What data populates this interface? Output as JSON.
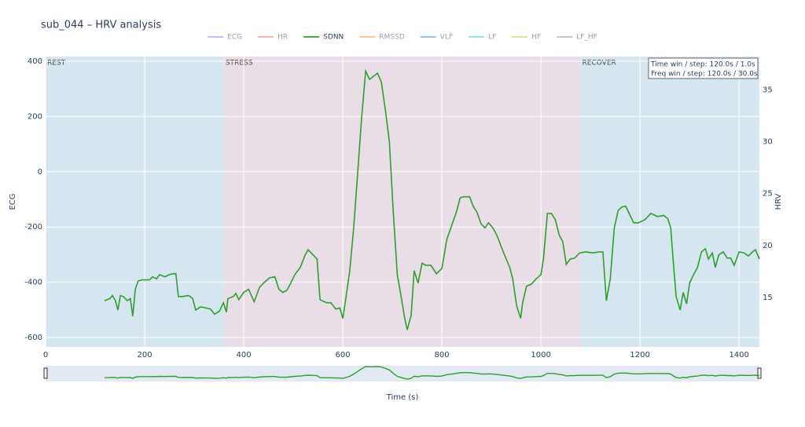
{
  "chart_data": {
    "type": "line",
    "title": "sub_044 – HRV analysis",
    "xlabel": "Time (s)",
    "ylabel": "ECG",
    "y2label": "HRV",
    "xlim": [
      0,
      1441
    ],
    "xticks": [
      0,
      200,
      400,
      600,
      800,
      1000,
      1200,
      1400
    ],
    "ylim": [
      -634,
      417
    ],
    "yticks": [
      -600,
      -400,
      -200,
      0,
      200,
      400
    ],
    "y2lim": [
      10.25,
      38.2
    ],
    "y2ticks": [
      15,
      20,
      25,
      30,
      35
    ],
    "grid": true,
    "legend": "top",
    "range_slider": true,
    "regions": [
      {
        "label": "REST",
        "start": 0,
        "end": 360,
        "color": "#d6e6f1"
      },
      {
        "label": "STRESS",
        "start": 360,
        "end": 1080,
        "color": "#e9dde8"
      },
      {
        "label": "RECOVER",
        "start": 1080,
        "end": 1441,
        "color": "#d6e6f1"
      }
    ],
    "annotations": [
      "Time win / step: 120.0s / 1.0s",
      "Freq win / step: 120.0s / 30.0s"
    ],
    "x": [
      119,
      130,
      135,
      141,
      146,
      151,
      157,
      165,
      171,
      176,
      181,
      187,
      195,
      210,
      216,
      224,
      230,
      241,
      249,
      257,
      263,
      268,
      276,
      289,
      297,
      303,
      313,
      324,
      333,
      341,
      351,
      359,
      365,
      368,
      379,
      384,
      390,
      400,
      410,
      421,
      432,
      440,
      452,
      463,
      471,
      479,
      487,
      495,
      503,
      514,
      524,
      530,
      540,
      548,
      554,
      567,
      576,
      586,
      594,
      600,
      606,
      614,
      622,
      630,
      638,
      646,
      654,
      662,
      670,
      678,
      686,
      694,
      702,
      710,
      717,
      725,
      730,
      738,
      744,
      752,
      760,
      768,
      778,
      789,
      800,
      810,
      821,
      829,
      837,
      844,
      856,
      863,
      871,
      879,
      887,
      894,
      903,
      911,
      924,
      937,
      943,
      951,
      959,
      963,
      971,
      981,
      990,
      1000,
      1005,
      1013,
      1021,
      1029,
      1037,
      1044,
      1051,
      1059,
      1068,
      1078,
      1090,
      1106,
      1117,
      1125,
      1132,
      1140,
      1148,
      1156,
      1163,
      1171,
      1178,
      1187,
      1197,
      1210,
      1222,
      1235,
      1248,
      1256,
      1262,
      1268,
      1273,
      1281,
      1287,
      1294,
      1300,
      1308,
      1316,
      1324,
      1332,
      1338,
      1346,
      1352,
      1359,
      1368,
      1376,
      1383,
      1390,
      1400,
      1410,
      1419,
      1427,
      1433,
      1441
    ],
    "series": [
      {
        "name": "ECG",
        "color": "#636efa",
        "visible": false
      },
      {
        "name": "HR",
        "color": "#ef553b",
        "visible": false
      },
      {
        "name": "SDNN",
        "color": "#2ca02c",
        "axis": "y2",
        "visible": true,
        "values": [
          14.7,
          14.9,
          15.2,
          14.7,
          13.8,
          15.2,
          15.1,
          14.7,
          14.9,
          13.2,
          15.8,
          16.6,
          16.7,
          16.7,
          17.0,
          16.8,
          17.2,
          17.0,
          17.2,
          17.3,
          17.3,
          15.1,
          15.1,
          15.2,
          14.9,
          13.8,
          14.1,
          14.0,
          13.9,
          13.4,
          13.7,
          14.5,
          13.6,
          14.9,
          15.1,
          15.4,
          14.8,
          15.5,
          15.8,
          14.6,
          16.0,
          16.4,
          16.9,
          17.0,
          15.8,
          15.5,
          15.7,
          16.4,
          17.2,
          17.9,
          19.1,
          19.6,
          19.1,
          18.7,
          14.8,
          14.5,
          14.5,
          13.9,
          14.0,
          13.0,
          14.9,
          17.6,
          21.7,
          27.0,
          32.3,
          36.8,
          36.0,
          36.3,
          36.6,
          35.7,
          33.0,
          30.0,
          23.2,
          17.2,
          15.3,
          13.0,
          11.9,
          13.3,
          17.6,
          16.4,
          18.3,
          18.1,
          18.1,
          17.3,
          17.8,
          20.6,
          22.1,
          23.2,
          24.6,
          24.7,
          24.7,
          23.8,
          23.2,
          22.1,
          21.7,
          22.2,
          21.7,
          21.0,
          19.4,
          17.9,
          16.8,
          14.2,
          13.0,
          14.5,
          16.1,
          16.3,
          16.8,
          17.2,
          18.7,
          23.1,
          23.1,
          22.5,
          21.0,
          20.4,
          18.2,
          18.7,
          18.8,
          19.3,
          19.4,
          19.3,
          19.4,
          19.4,
          14.7,
          16.8,
          21.7,
          23.4,
          23.7,
          23.8,
          23.1,
          22.2,
          22.2,
          22.5,
          23.1,
          22.8,
          22.9,
          22.6,
          21.7,
          17.9,
          15.1,
          13.8,
          15.5,
          14.4,
          16.4,
          17.2,
          17.9,
          19.4,
          19.7,
          18.7,
          19.3,
          17.9,
          19.1,
          19.4,
          18.8,
          18.8,
          18.1,
          19.4,
          19.3,
          19.0,
          19.4,
          19.6,
          18.7
        ]
      },
      {
        "name": "RMSSD",
        "color": "#ff7f0e",
        "visible": false
      },
      {
        "name": "VLF",
        "color": "#1f77b4",
        "visible": false
      },
      {
        "name": "LF",
        "color": "#17becf",
        "visible": false
      },
      {
        "name": "HF",
        "color": "#bcbd22",
        "visible": false
      },
      {
        "name": "LF_HF",
        "color": "#7f7f7f",
        "visible": false
      }
    ]
  }
}
